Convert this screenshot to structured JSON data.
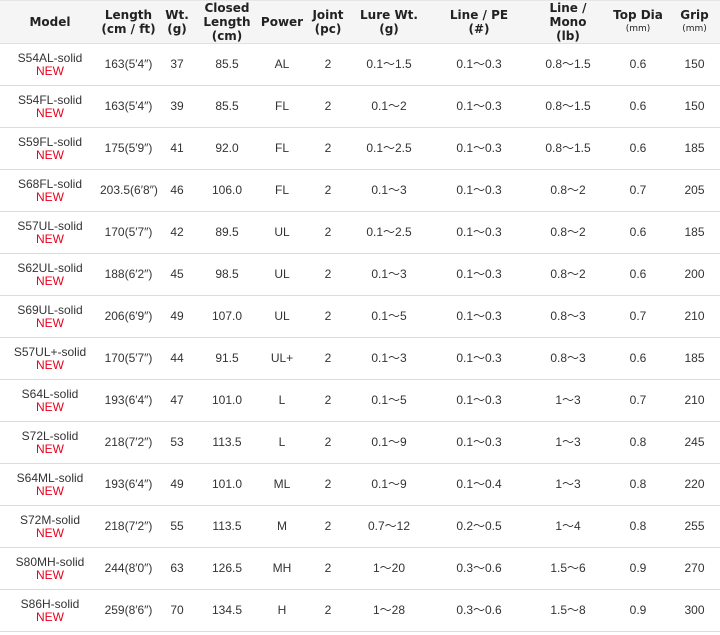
{
  "headers": [
    [
      "Model",
      ""
    ],
    [
      "Length",
      "(cm / ft)"
    ],
    [
      "Wt.",
      "(g)"
    ],
    [
      "Closed Length",
      "(cm)"
    ],
    [
      "Power",
      ""
    ],
    [
      "Joint",
      "(pc)"
    ],
    [
      "Lure Wt.",
      "(g)"
    ],
    [
      "Line / PE",
      "(#)"
    ],
    [
      "Line / Mono",
      "(lb)"
    ],
    [
      "Top Dia",
      "(mm)"
    ],
    [
      "Grip",
      "(mm)"
    ]
  ],
  "new_label": "NEW",
  "colors": {
    "new": "#e8001c",
    "header_bg": "#f5f5f5"
  },
  "rows": [
    [
      "S54AL-solid",
      "163(5′4″)",
      "37",
      "85.5",
      "AL",
      "2",
      "0.1〜1.5",
      "0.1〜0.3",
      "0.8〜1.5",
      "0.6",
      "150"
    ],
    [
      "S54FL-solid",
      "163(5′4″)",
      "39",
      "85.5",
      "FL",
      "2",
      "0.1〜2",
      "0.1〜0.3",
      "0.8〜1.5",
      "0.6",
      "150"
    ],
    [
      "S59FL-solid",
      "175(5′9″)",
      "41",
      "92.0",
      "FL",
      "2",
      "0.1〜2.5",
      "0.1〜0.3",
      "0.8〜1.5",
      "0.6",
      "185"
    ],
    [
      "S68FL-solid",
      "203.5(6′8″)",
      "46",
      "106.0",
      "FL",
      "2",
      "0.1〜3",
      "0.1〜0.3",
      "0.8〜2",
      "0.7",
      "205"
    ],
    [
      "S57UL-solid",
      "170(5′7″)",
      "42",
      "89.5",
      "UL",
      "2",
      "0.1〜2.5",
      "0.1〜0.3",
      "0.8〜2",
      "0.6",
      "185"
    ],
    [
      "S62UL-solid",
      "188(6′2″)",
      "45",
      "98.5",
      "UL",
      "2",
      "0.1〜3",
      "0.1〜0.3",
      "0.8〜2",
      "0.6",
      "200"
    ],
    [
      "S69UL-solid",
      "206(6′9″)",
      "49",
      "107.0",
      "UL",
      "2",
      "0.1〜5",
      "0.1〜0.3",
      "0.8〜3",
      "0.7",
      "210"
    ],
    [
      "S57UL+-solid",
      "170(5′7″)",
      "44",
      "91.5",
      "UL+",
      "2",
      "0.1〜3",
      "0.1〜0.3",
      "0.8〜3",
      "0.6",
      "185"
    ],
    [
      "S64L-solid",
      "193(6′4″)",
      "47",
      "101.0",
      "L",
      "2",
      "0.1〜5",
      "0.1〜0.3",
      "1〜3",
      "0.7",
      "210"
    ],
    [
      "S72L-solid",
      "218(7′2″)",
      "53",
      "113.5",
      "L",
      "2",
      "0.1〜9",
      "0.1〜0.3",
      "1〜3",
      "0.8",
      "245"
    ],
    [
      "S64ML-solid",
      "193(6′4″)",
      "49",
      "101.0",
      "ML",
      "2",
      "0.1〜9",
      "0.1〜0.4",
      "1〜3",
      "0.8",
      "220"
    ],
    [
      "S72M-solid",
      "218(7′2″)",
      "55",
      "113.5",
      "M",
      "2",
      "0.7〜12",
      "0.2〜0.5",
      "1〜4",
      "0.8",
      "255"
    ],
    [
      "S80MH-solid",
      "244(8′0″)",
      "63",
      "126.5",
      "MH",
      "2",
      "1〜20",
      "0.3〜0.6",
      "1.5〜6",
      "0.9",
      "270"
    ],
    [
      "S86H-solid",
      "259(8′6″)",
      "70",
      "134.5",
      "H",
      "2",
      "1〜28",
      "0.3〜0.6",
      "1.5〜8",
      "0.9",
      "300"
    ]
  ]
}
